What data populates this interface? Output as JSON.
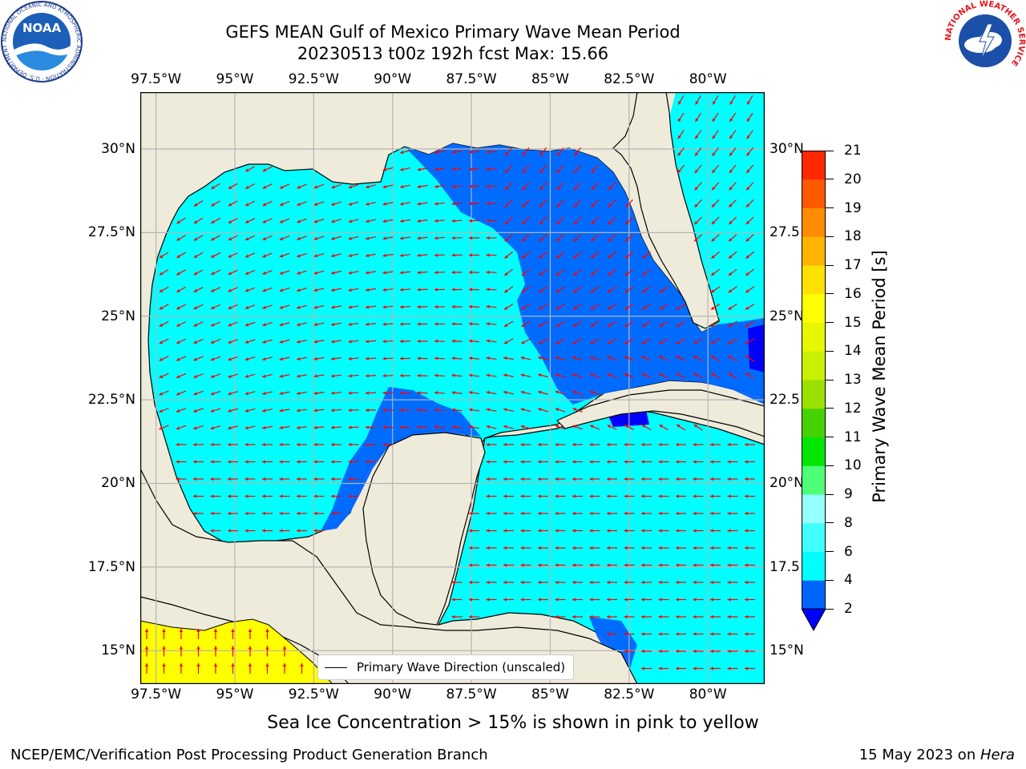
{
  "header": {
    "title_line1": "GEFS MEAN Gulf of Mexico Primary Wave Mean Period",
    "title_line2": "20230513 t00z 192h fcst   Max: 15.66"
  },
  "logos": {
    "noaa_text": "NOAA",
    "noaa_ring": "NATIONAL OCEANIC AND ATMOSPHERIC ADMINISTRATION · U.S. DEPARTMENT OF COMMERCE",
    "nws_ring": "NATIONAL WEATHER SERVICE"
  },
  "map": {
    "lon_labels": [
      "97.5°W",
      "95°W",
      "92.5°W",
      "90°W",
      "87.5°W",
      "85°W",
      "82.5°W",
      "80°W"
    ],
    "lat_labels_left": [
      "30°N",
      "27.5°N",
      "25°N",
      "22.5°N",
      "20°N",
      "17.5°N",
      "15°N"
    ],
    "lat_labels_right": [
      "30°N",
      "27.5",
      "25°N",
      "22.5",
      "20°N",
      "17.5",
      "15°N"
    ],
    "lon_range": [
      -98,
      -78.2
    ],
    "lat_range": [
      14,
      31.7
    ],
    "colors": {
      "land": "#efebdb",
      "coast": "#000000",
      "grid": "#b4b4b4",
      "arrow": "#ff0000",
      "sea_ice": "#ffff00"
    }
  },
  "legend": {
    "label": "Primary Wave Direction (unscaled)"
  },
  "colorbar": {
    "title": "Primary Wave Mean Period [s]",
    "ticks": [
      "2",
      "4",
      "6",
      "8",
      "9",
      "10",
      "11",
      "12",
      "13",
      "14",
      "15",
      "16",
      "17",
      "18",
      "19",
      "20",
      "21"
    ],
    "colors": [
      "#0064ff",
      "#00ffff",
      "#40ffff",
      "#96ffff",
      "#50ff78",
      "#00e600",
      "#46d200",
      "#9be100",
      "#c8f000",
      "#e6f700",
      "#ffff00",
      "#ffe100",
      "#ffb400",
      "#ff8c00",
      "#ff5a00",
      "#ff2800",
      "#ff0000"
    ],
    "under_color": "#0000ff"
  },
  "footer": {
    "subtitle": "Sea Ice Concentration > 15% is shown in pink to yellow",
    "credit": "NCEP/EMC/Verification Post Processing Product Generation Branch",
    "date": "15 May 2023 on ",
    "machine": "Hera"
  }
}
